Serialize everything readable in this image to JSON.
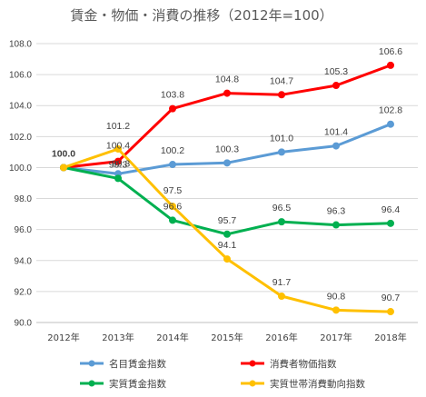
{
  "chart_data": {
    "type": "line",
    "title": "賃金・物価・消費の推移（2012年=100）",
    "xlabel": "",
    "ylabel": "",
    "categories": [
      "2012年",
      "2013年",
      "2014年",
      "2015年",
      "2016年",
      "2017年",
      "2018年"
    ],
    "ylim": [
      90.0,
      108.0
    ],
    "yticks": [
      "90.0",
      "92.0",
      "94.0",
      "96.0",
      "98.0",
      "100.0",
      "102.0",
      "104.0",
      "106.0",
      "108.0"
    ],
    "grid": true,
    "legend_position": "bottom",
    "series": [
      {
        "name": "名目賃金指数",
        "color": "#5b9bd5",
        "values": [
          100.0,
          99.6,
          100.2,
          100.3,
          101.0,
          101.4,
          102.8
        ],
        "labels": [
          "",
          "",
          "100.2",
          "100.3",
          "101.0",
          "101.4",
          "102.8"
        ]
      },
      {
        "name": "消費者物価指数",
        "color": "#ff0000",
        "values": [
          100.0,
          100.4,
          103.8,
          104.8,
          104.7,
          105.3,
          106.6
        ],
        "labels": [
          "",
          "100.4",
          "103.8",
          "104.8",
          "104.7",
          "105.3",
          "106.6"
        ]
      },
      {
        "name": "実質賃金指数",
        "color": "#00b050",
        "values": [
          100.0,
          99.3,
          96.6,
          95.7,
          96.5,
          96.3,
          96.4
        ],
        "labels": [
          "",
          "99.3",
          "96.6",
          "95.7",
          "96.5",
          "96.3",
          "96.4"
        ]
      },
      {
        "name": "実質世帯消費動向指数",
        "color": "#ffc000",
        "values": [
          100.0,
          101.2,
          97.5,
          94.1,
          91.7,
          90.8,
          90.7
        ],
        "labels": [
          "100.0",
          "101.2",
          "97.5",
          "94.1",
          "91.7",
          "90.8",
          "90.7"
        ]
      }
    ],
    "extra_labels": [
      "99.3"
    ]
  }
}
